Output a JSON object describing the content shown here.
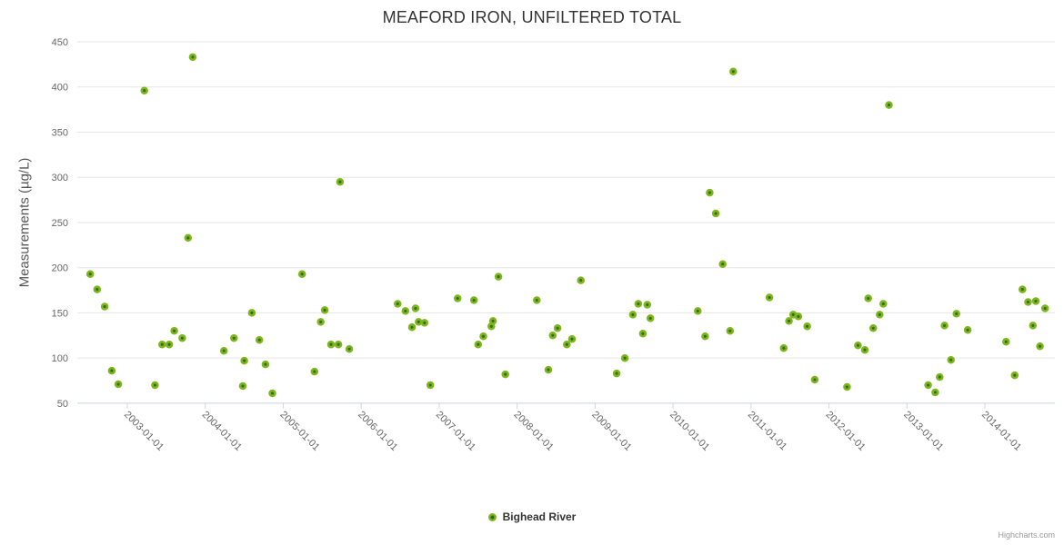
{
  "chart": {
    "title": "MEAFORD IRON, UNFILTERED TOTAL",
    "credits": "Highcharts.com"
  },
  "legend": {
    "items": [
      {
        "label": "Bighead River"
      }
    ]
  },
  "chart_data": {
    "type": "scatter",
    "title": "MEAFORD IRON, UNFILTERED TOTAL",
    "xlabel": "",
    "ylabel": "Measurements (µg/L)",
    "ylim": [
      50,
      450
    ],
    "y_ticks": [
      450,
      400,
      350,
      300,
      250,
      200,
      150,
      100,
      50
    ],
    "x_tick_labels": [
      "2003-01-01",
      "2004-01-01",
      "2005-01-01",
      "2006-01-01",
      "2007-01-01",
      "2008-01-01",
      "2009-01-01",
      "2010-01-01",
      "2011-01-01",
      "2012-01-01",
      "2013-01-01",
      "2014-01-01"
    ],
    "grid": true,
    "legend_position": "bottom-center",
    "colors": {
      "marker_fill": "#2e6f0d",
      "marker_stroke": "#7eb41c",
      "gridline": "#e6e6e6",
      "axis_line": "#ccd6eb",
      "tick_label": "#666666"
    },
    "series": [
      {
        "name": "Bighead River",
        "points": [
          [
            "2002-07-10",
            193
          ],
          [
            "2002-08-12",
            176
          ],
          [
            "2002-09-17",
            157
          ],
          [
            "2002-10-20",
            86
          ],
          [
            "2002-11-20",
            71
          ],
          [
            "2003-03-20",
            396
          ],
          [
            "2003-05-09",
            70
          ],
          [
            "2003-06-12",
            115
          ],
          [
            "2003-07-15",
            115
          ],
          [
            "2003-08-08",
            130
          ],
          [
            "2003-09-15",
            122
          ],
          [
            "2003-10-12",
            233
          ],
          [
            "2003-11-03",
            433
          ],
          [
            "2004-03-28",
            108
          ],
          [
            "2004-05-14",
            122
          ],
          [
            "2004-06-25",
            69
          ],
          [
            "2004-07-01",
            97
          ],
          [
            "2004-08-06",
            150
          ],
          [
            "2004-09-11",
            120
          ],
          [
            "2004-10-09",
            93
          ],
          [
            "2004-11-11",
            61
          ],
          [
            "2005-03-29",
            193
          ],
          [
            "2005-05-26",
            85
          ],
          [
            "2005-06-25",
            140
          ],
          [
            "2005-07-13",
            153
          ],
          [
            "2005-08-12",
            115
          ],
          [
            "2005-09-16",
            115
          ],
          [
            "2005-09-24",
            295
          ],
          [
            "2005-11-06",
            110
          ],
          [
            "2006-06-20",
            160
          ],
          [
            "2006-07-26",
            152
          ],
          [
            "2006-08-26",
            134
          ],
          [
            "2006-09-12",
            155
          ],
          [
            "2006-09-27",
            140
          ],
          [
            "2006-10-24",
            139
          ],
          [
            "2006-11-21",
            70
          ],
          [
            "2007-03-27",
            166
          ],
          [
            "2007-06-12",
            164
          ],
          [
            "2007-07-01",
            115
          ],
          [
            "2007-07-26",
            124
          ],
          [
            "2007-09-02",
            135
          ],
          [
            "2007-09-10",
            141
          ],
          [
            "2007-10-05",
            190
          ],
          [
            "2007-11-07",
            82
          ],
          [
            "2008-04-02",
            164
          ],
          [
            "2008-05-26",
            87
          ],
          [
            "2008-06-16",
            125
          ],
          [
            "2008-07-08",
            133
          ],
          [
            "2008-08-21",
            115
          ],
          [
            "2008-09-15",
            121
          ],
          [
            "2008-10-26",
            186
          ],
          [
            "2009-04-11",
            83
          ],
          [
            "2009-05-19",
            100
          ],
          [
            "2009-06-26",
            148
          ],
          [
            "2009-07-21",
            160
          ],
          [
            "2009-08-12",
            127
          ],
          [
            "2009-09-02",
            159
          ],
          [
            "2009-09-17",
            144
          ],
          [
            "2010-04-26",
            152
          ],
          [
            "2010-05-30",
            124
          ],
          [
            "2010-06-21",
            283
          ],
          [
            "2010-07-19",
            260
          ],
          [
            "2010-08-21",
            204
          ],
          [
            "2010-09-25",
            130
          ],
          [
            "2010-10-09",
            417
          ],
          [
            "2011-03-27",
            167
          ],
          [
            "2011-06-02",
            111
          ],
          [
            "2011-06-27",
            141
          ],
          [
            "2011-07-16",
            148
          ],
          [
            "2011-08-10",
            146
          ],
          [
            "2011-09-21",
            135
          ],
          [
            "2011-10-26",
            76
          ],
          [
            "2012-03-25",
            68
          ],
          [
            "2012-05-15",
            114
          ],
          [
            "2012-06-17",
            109
          ],
          [
            "2012-07-02",
            166
          ],
          [
            "2012-07-26",
            133
          ],
          [
            "2012-08-26",
            148
          ],
          [
            "2012-09-12",
            160
          ],
          [
            "2012-10-08",
            380
          ],
          [
            "2013-04-09",
            70
          ],
          [
            "2013-05-12",
            62
          ],
          [
            "2013-06-02",
            79
          ],
          [
            "2013-06-25",
            136
          ],
          [
            "2013-07-25",
            98
          ],
          [
            "2013-08-20",
            149
          ],
          [
            "2013-10-12",
            131
          ],
          [
            "2014-04-09",
            118
          ],
          [
            "2014-05-19",
            81
          ],
          [
            "2014-06-25",
            176
          ],
          [
            "2014-07-21",
            162
          ],
          [
            "2014-08-13",
            136
          ],
          [
            "2014-08-27",
            163
          ],
          [
            "2014-09-16",
            113
          ],
          [
            "2014-10-09",
            155
          ]
        ]
      }
    ]
  }
}
